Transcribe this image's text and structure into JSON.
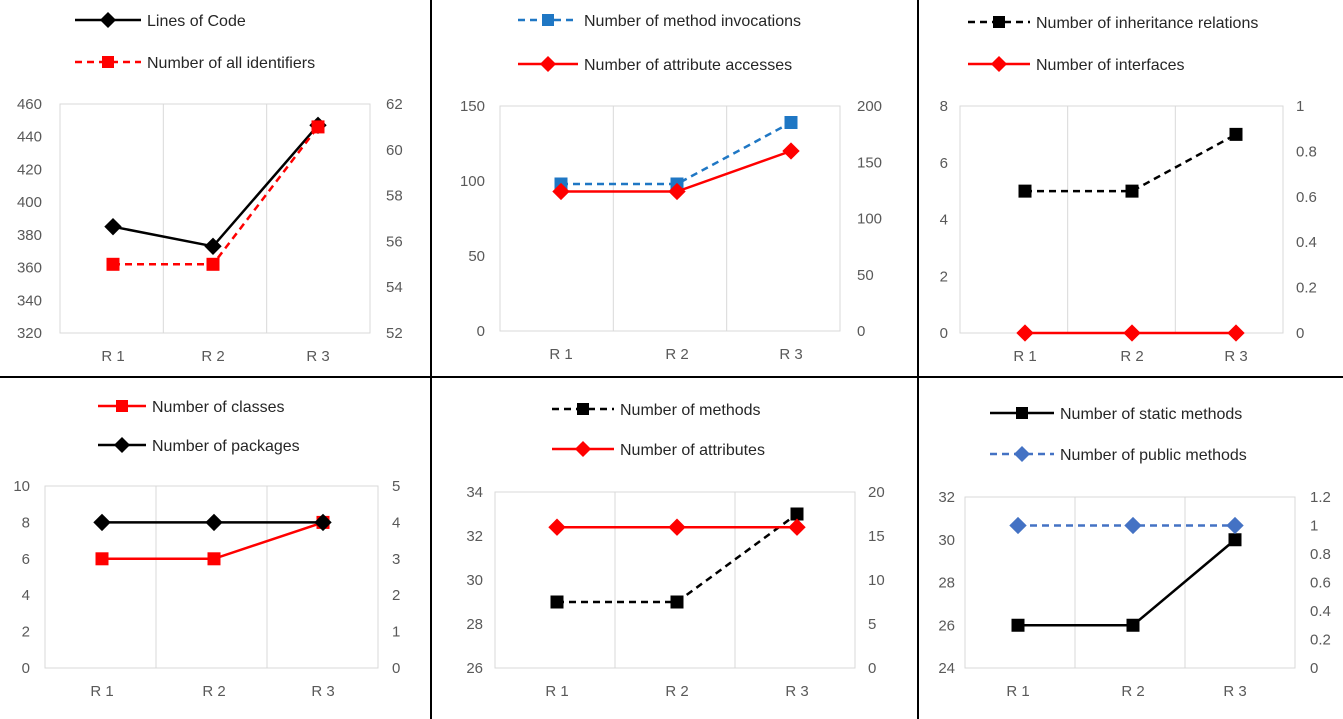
{
  "chart_data": [
    {
      "type": "line",
      "categories": [
        "R 1",
        "R 2",
        "R 3"
      ],
      "legend": "top",
      "grid": "vertical",
      "y_left_ticks": [
        "320",
        "340",
        "360",
        "380",
        "400",
        "420",
        "440",
        "460"
      ],
      "y_right_ticks": [
        "52",
        "54",
        "56",
        "58",
        "60",
        "62"
      ],
      "ylim_left": [
        320,
        460
      ],
      "ylim_right": [
        52,
        62
      ],
      "series": [
        {
          "name": "Lines of Code",
          "axis": "left",
          "values": [
            385,
            373,
            447
          ],
          "color": "#000000",
          "dash": "solid",
          "marker": "diamond"
        },
        {
          "name": "Number of all identifiers",
          "axis": "right",
          "values": [
            55,
            55,
            61
          ],
          "color": "#ff0000",
          "dash": "dashed",
          "marker": "square"
        }
      ]
    },
    {
      "type": "line",
      "categories": [
        "R 1",
        "R 2",
        "R 3"
      ],
      "legend": "top",
      "grid": "vertical",
      "y_left_ticks": [
        "0",
        "50",
        "100",
        "150"
      ],
      "y_right_ticks": [
        "0",
        "50",
        "100",
        "150",
        "200"
      ],
      "ylim_left": [
        0,
        150
      ],
      "ylim_right": [
        0,
        200
      ],
      "series": [
        {
          "name": "Number of method invocations",
          "axis": "left",
          "values": [
            98,
            98,
            139
          ],
          "color": "#1f77c4",
          "dash": "dashed",
          "marker": "square"
        },
        {
          "name": "Number of attribute accesses",
          "axis": "right",
          "values": [
            124,
            124,
            160
          ],
          "color": "#ff0000",
          "dash": "solid",
          "marker": "diamond"
        }
      ]
    },
    {
      "type": "line",
      "categories": [
        "R 1",
        "R 2",
        "R 3"
      ],
      "legend": "top",
      "grid": "vertical",
      "y_left_ticks": [
        "0",
        "2",
        "4",
        "6",
        "8"
      ],
      "y_right_ticks": [
        "0",
        "0.2",
        "0.4",
        "0.6",
        "0.8",
        "1"
      ],
      "ylim_left": [
        0,
        8
      ],
      "ylim_right": [
        0,
        1
      ],
      "series": [
        {
          "name": "Number of inheritance relations",
          "axis": "left",
          "values": [
            5,
            5,
            7
          ],
          "color": "#000000",
          "dash": "dashed",
          "marker": "square"
        },
        {
          "name": "Number of interfaces",
          "axis": "right",
          "values": [
            0,
            0,
            0
          ],
          "color": "#ff0000",
          "dash": "solid",
          "marker": "diamond"
        }
      ]
    },
    {
      "type": "line",
      "categories": [
        "R 1",
        "R 2",
        "R 3"
      ],
      "legend": "top",
      "grid": "vertical",
      "y_left_ticks": [
        "0",
        "2",
        "4",
        "6",
        "8",
        "10"
      ],
      "y_right_ticks": [
        "0",
        "1",
        "2",
        "3",
        "4",
        "5"
      ],
      "ylim_left": [
        0,
        10
      ],
      "ylim_right": [
        0,
        5
      ],
      "series": [
        {
          "name": "Number of classes",
          "axis": "left",
          "values": [
            6,
            6,
            8
          ],
          "color": "#ff0000",
          "dash": "solid",
          "marker": "square"
        },
        {
          "name": "Number of packages",
          "axis": "right",
          "values": [
            4,
            4,
            4
          ],
          "color": "#000000",
          "dash": "solid",
          "marker": "diamond"
        }
      ]
    },
    {
      "type": "line",
      "categories": [
        "R 1",
        "R 2",
        "R 3"
      ],
      "legend": "top",
      "grid": "vertical",
      "y_left_ticks": [
        "26",
        "28",
        "30",
        "32",
        "34"
      ],
      "y_right_ticks": [
        "0",
        "5",
        "10",
        "15",
        "20"
      ],
      "ylim_left": [
        26,
        34
      ],
      "ylim_right": [
        0,
        20
      ],
      "series": [
        {
          "name": "Number of methods",
          "axis": "left",
          "values": [
            29,
            29,
            33
          ],
          "color": "#000000",
          "dash": "dashed",
          "marker": "square"
        },
        {
          "name": "Number of attributes",
          "axis": "right",
          "values": [
            16,
            16,
            16
          ],
          "color": "#ff0000",
          "dash": "solid",
          "marker": "diamond"
        }
      ]
    },
    {
      "type": "line",
      "categories": [
        "R 1",
        "R 2",
        "R 3"
      ],
      "legend": "top",
      "grid": "vertical",
      "y_left_ticks": [
        "24",
        "26",
        "28",
        "30",
        "32"
      ],
      "y_right_ticks": [
        "0",
        "0.2",
        "0.4",
        "0.6",
        "0.8",
        "1",
        "1.2"
      ],
      "ylim_left": [
        24,
        32
      ],
      "ylim_right": [
        0,
        1.2
      ],
      "series": [
        {
          "name": "Number of static methods",
          "axis": "left",
          "values": [
            26,
            26,
            30
          ],
          "color": "#000000",
          "dash": "solid",
          "marker": "square"
        },
        {
          "name": "Number of public methods",
          "axis": "right",
          "values": [
            1,
            1,
            1
          ],
          "color": "#4472c4",
          "dash": "dashed",
          "marker": "diamond"
        }
      ]
    }
  ]
}
